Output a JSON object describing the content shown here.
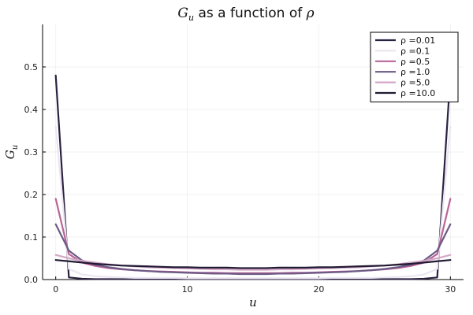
{
  "chart_data": {
    "type": "line",
    "title": "G_u as a function of ρ",
    "title_main": "G",
    "title_sub": "u",
    "title_rest": " as a function of ",
    "title_rho": "ρ",
    "xlabel": "u",
    "ylabel_main": "G",
    "ylabel_sub": "u",
    "xlim": [
      -1,
      31
    ],
    "ylim": [
      0,
      0.6
    ],
    "xticks": [
      0,
      10,
      20,
      30
    ],
    "yticks": [
      0.0,
      0.1,
      0.2,
      0.3,
      0.4,
      0.5
    ],
    "ytick_labels": [
      "0.0",
      "0.1",
      "0.2",
      "0.3",
      "0.4",
      "0.5"
    ],
    "grid": true,
    "legend_position": "top-right",
    "x": [
      0,
      1,
      2,
      3,
      4,
      5,
      6,
      7,
      8,
      9,
      10,
      11,
      12,
      13,
      14,
      15,
      16,
      17,
      18,
      19,
      20,
      21,
      22,
      23,
      24,
      25,
      26,
      27,
      28,
      29,
      30
    ],
    "series": [
      {
        "name": "ρ =0.01",
        "color": "#2b2140",
        "values": [
          0.48,
          0.005,
          0.002,
          0.001,
          0.001,
          0.001,
          0.001,
          0.001,
          0.001,
          0.001,
          0.001,
          0.001,
          0.001,
          0.001,
          0.001,
          0.001,
          0.001,
          0.001,
          0.001,
          0.001,
          0.001,
          0.001,
          0.001,
          0.001,
          0.001,
          0.001,
          0.001,
          0.001,
          0.002,
          0.005,
          0.48
        ]
      },
      {
        "name": "ρ =0.1",
        "color": "#ece6f1",
        "values": [
          0.36,
          0.025,
          0.012,
          0.008,
          0.006,
          0.005,
          0.004,
          0.004,
          0.004,
          0.004,
          0.003,
          0.003,
          0.003,
          0.003,
          0.003,
          0.003,
          0.003,
          0.003,
          0.003,
          0.003,
          0.003,
          0.004,
          0.004,
          0.004,
          0.004,
          0.005,
          0.006,
          0.008,
          0.012,
          0.025,
          0.36
        ]
      },
      {
        "name": "ρ =0.5",
        "color": "#b96497",
        "values": [
          0.19,
          0.06,
          0.04,
          0.032,
          0.027,
          0.024,
          0.022,
          0.02,
          0.019,
          0.018,
          0.017,
          0.016,
          0.016,
          0.015,
          0.015,
          0.015,
          0.015,
          0.015,
          0.016,
          0.016,
          0.017,
          0.018,
          0.019,
          0.02,
          0.022,
          0.024,
          0.027,
          0.032,
          0.04,
          0.06,
          0.19
        ]
      },
      {
        "name": "ρ =1.0",
        "color": "#6b5a85",
        "values": [
          0.13,
          0.068,
          0.045,
          0.035,
          0.029,
          0.025,
          0.022,
          0.02,
          0.018,
          0.017,
          0.016,
          0.015,
          0.014,
          0.014,
          0.013,
          0.013,
          0.013,
          0.014,
          0.014,
          0.015,
          0.016,
          0.017,
          0.018,
          0.02,
          0.022,
          0.025,
          0.029,
          0.035,
          0.045,
          0.068,
          0.13
        ]
      },
      {
        "name": "ρ =5.0",
        "color": "#d4a9c8",
        "values": [
          0.058,
          0.05,
          0.044,
          0.04,
          0.036,
          0.033,
          0.031,
          0.029,
          0.028,
          0.027,
          0.026,
          0.025,
          0.024,
          0.024,
          0.023,
          0.023,
          0.023,
          0.024,
          0.024,
          0.025,
          0.026,
          0.027,
          0.028,
          0.029,
          0.031,
          0.033,
          0.036,
          0.04,
          0.044,
          0.05,
          0.058
        ]
      },
      {
        "name": "ρ =10.0",
        "color": "#211a33",
        "values": [
          0.046,
          0.043,
          0.04,
          0.037,
          0.035,
          0.033,
          0.032,
          0.031,
          0.03,
          0.029,
          0.029,
          0.028,
          0.028,
          0.028,
          0.027,
          0.027,
          0.027,
          0.028,
          0.028,
          0.028,
          0.029,
          0.029,
          0.03,
          0.031,
          0.032,
          0.033,
          0.035,
          0.037,
          0.04,
          0.043,
          0.046
        ]
      }
    ]
  }
}
